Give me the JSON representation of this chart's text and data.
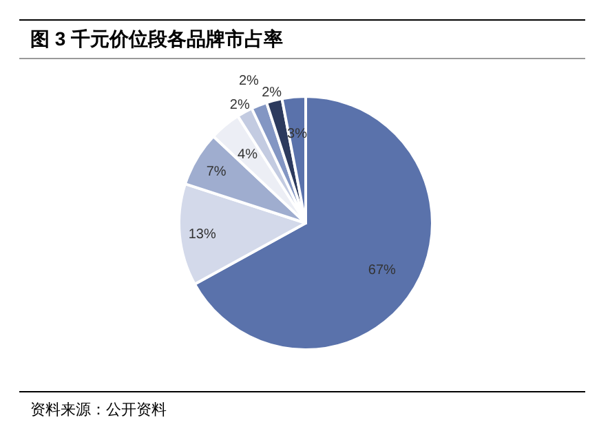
{
  "chart_data": {
    "type": "pie",
    "title": "图 3 千元价位段各品牌市占率",
    "categories": [
      null,
      null,
      null,
      null,
      null,
      null,
      null,
      null
    ],
    "values": [
      67,
      13,
      7,
      4,
      2,
      2,
      2,
      3
    ],
    "value_labels": [
      "67%",
      "13%",
      "7%",
      "4%",
      "2%",
      "2%",
      "2%",
      "3%"
    ],
    "colors": [
      "#5a72ab",
      "#d3d9ea",
      "#9fadcf",
      "#eceef5",
      "#c3cbe1",
      "#8396c3",
      "#2c3a5e",
      "#5a72ab"
    ],
    "annotations": [
      "资料来源：公开资料"
    ]
  }
}
